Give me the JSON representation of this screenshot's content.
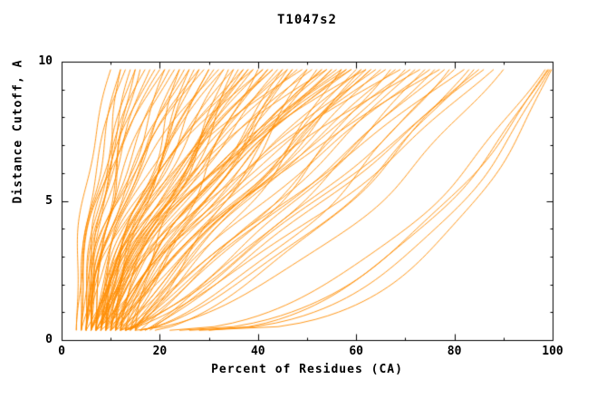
{
  "chart_data": {
    "type": "line",
    "title": "T1047s2",
    "xlabel": "Percent of Residues (CA)",
    "ylabel": "Distance Cutoff, A",
    "xlim": [
      0,
      100
    ],
    "ylim": [
      0,
      10
    ],
    "xticks": [
      0,
      20,
      40,
      60,
      80,
      100
    ],
    "yticks": [
      0,
      5,
      10
    ],
    "xminor": [
      10,
      30,
      50,
      70,
      90
    ],
    "yminor": [
      1,
      2,
      3,
      4,
      6,
      7,
      8,
      9
    ],
    "grid": false,
    "legend": null,
    "line_color": "#ff8c00",
    "frame_color": "#000000",
    "text_color": "#000000",
    "background": "#ffffff",
    "curve_y_range": [
      0.35,
      9.72
    ],
    "curves": [
      [
        3,
        10,
        2.2,
        0.6,
        0.5
      ],
      [
        4,
        12,
        1.8,
        0.8,
        1.2
      ],
      [
        4,
        13,
        2.4,
        0.5,
        2.1
      ],
      [
        5,
        14,
        1.6,
        0.9,
        0.3
      ],
      [
        5,
        15,
        2.0,
        0.7,
        1.8
      ],
      [
        6,
        16,
        1.4,
        1.0,
        2.6
      ],
      [
        4,
        17,
        2.2,
        0.6,
        0.9
      ],
      [
        5,
        18,
        1.7,
        0.8,
        1.5
      ],
      [
        6,
        19,
        2.5,
        0.5,
        2.9
      ],
      [
        3,
        20,
        1.9,
        0.7,
        0.2
      ],
      [
        6,
        12,
        1.3,
        0.9,
        1.1
      ],
      [
        7,
        15,
        1.5,
        0.6,
        2.4
      ],
      [
        4,
        21,
        1.1,
        1.0,
        0.4
      ],
      [
        5,
        22,
        1.6,
        0.8,
        1.6
      ],
      [
        6,
        23,
        2.0,
        0.6,
        2.8
      ],
      [
        7,
        24,
        0.9,
        1.2,
        0.7
      ],
      [
        5,
        25,
        1.4,
        0.9,
        1.9
      ],
      [
        6,
        26,
        1.8,
        0.7,
        3.0
      ],
      [
        8,
        27,
        1.2,
        1.1,
        0.5
      ],
      [
        4,
        28,
        1.7,
        0.8,
        1.3
      ],
      [
        7,
        29,
        2.1,
        0.6,
        2.2
      ],
      [
        5,
        30,
        1.0,
        1.3,
        0.8
      ],
      [
        8,
        31,
        1.5,
        0.9,
        1.7
      ],
      [
        6,
        32,
        1.9,
        0.7,
        2.5
      ],
      [
        9,
        33,
        1.3,
        1.0,
        0.6
      ],
      [
        7,
        34,
        0.8,
        1.2,
        1.4
      ],
      [
        5,
        21,
        2.3,
        0.5,
        2.0
      ],
      [
        8,
        24,
        1.6,
        0.8,
        0.9
      ],
      [
        6,
        28,
        1.1,
        1.1,
        1.8
      ],
      [
        9,
        30,
        1.4,
        0.9,
        2.7
      ],
      [
        7,
        33,
        1.8,
        0.7,
        0.3
      ],
      [
        10,
        26,
        1.2,
        1.0,
        1.0
      ],
      [
        5,
        35,
        1.5,
        0.9,
        0.5
      ],
      [
        7,
        36,
        1.0,
        1.2,
        1.5
      ],
      [
        9,
        37,
        1.8,
        0.7,
        2.5
      ],
      [
        6,
        38,
        1.3,
        1.0,
        0.8
      ],
      [
        8,
        39,
        2.0,
        0.6,
        1.8
      ],
      [
        10,
        40,
        0.9,
        1.3,
        2.8
      ],
      [
        7,
        41,
        1.6,
        0.8,
        0.4
      ],
      [
        9,
        42,
        1.2,
        1.1,
        1.4
      ],
      [
        11,
        43,
        1.9,
        0.6,
        2.4
      ],
      [
        6,
        44,
        1.1,
        1.2,
        0.6
      ],
      [
        8,
        45,
        1.4,
        0.9,
        1.6
      ],
      [
        10,
        46,
        1.7,
        0.7,
        2.6
      ],
      [
        12,
        47,
        1.0,
        1.2,
        0.9
      ],
      [
        7,
        48,
        1.5,
        0.8,
        1.9
      ],
      [
        9,
        49,
        2.1,
        0.6,
        2.9
      ],
      [
        11,
        35,
        0.9,
        1.3,
        0.2
      ],
      [
        6,
        39,
        1.2,
        1.0,
        1.2
      ],
      [
        8,
        43,
        1.6,
        0.8,
        2.2
      ],
      [
        10,
        47,
        1.1,
        1.1,
        0.7
      ],
      [
        12,
        37,
        1.4,
        0.9,
        1.7
      ],
      [
        5,
        41,
        1.8,
        0.7,
        2.7
      ],
      [
        7,
        45,
        0.9,
        1.2,
        0.5
      ],
      [
        9,
        38,
        1.3,
        1.0,
        1.5
      ],
      [
        11,
        42,
        1.6,
        0.8,
        2.5
      ],
      [
        13,
        46,
        1.0,
        1.1,
        1.0
      ],
      [
        6,
        50,
        1.2,
        1.0,
        0.3
      ],
      [
        8,
        51,
        1.6,
        0.8,
        1.3
      ],
      [
        10,
        52,
        0.9,
        1.2,
        2.3
      ],
      [
        12,
        53,
        1.4,
        0.9,
        0.6
      ],
      [
        7,
        54,
        1.8,
        0.7,
        1.6
      ],
      [
        9,
        55,
        1.1,
        1.1,
        2.6
      ],
      [
        11,
        56,
        1.5,
        0.8,
        0.8
      ],
      [
        13,
        57,
        0.8,
        1.3,
        1.8
      ],
      [
        8,
        58,
        1.3,
        1.0,
        2.8
      ],
      [
        10,
        59,
        1.7,
        0.7,
        0.4
      ],
      [
        12,
        60,
        1.0,
        1.2,
        1.4
      ],
      [
        14,
        61,
        1.4,
        0.9,
        2.4
      ],
      [
        9,
        62,
        1.8,
        0.6,
        0.7
      ],
      [
        11,
        63,
        1.1,
        1.1,
        1.7
      ],
      [
        13,
        64,
        1.5,
        0.8,
        2.7
      ],
      [
        15,
        50,
        0.9,
        1.2,
        0.9
      ],
      [
        7,
        53,
        1.2,
        1.0,
        1.9
      ],
      [
        9,
        57,
        1.6,
        0.8,
        2.9
      ],
      [
        11,
        61,
        0.9,
        1.2,
        0.5
      ],
      [
        13,
        55,
        1.3,
        0.9,
        1.5
      ],
      [
        15,
        59,
        1.7,
        0.7,
        2.5
      ],
      [
        8,
        63,
        1.0,
        1.1,
        1.0
      ],
      [
        10,
        54,
        1.4,
        0.9,
        2.0
      ],
      [
        12,
        58,
        1.8,
        0.6,
        0.2
      ],
      [
        14,
        62,
        1.1,
        1.0,
        1.2
      ],
      [
        9,
        65,
        1.0,
        1.1,
        0.6
      ],
      [
        11,
        66,
        1.4,
        0.9,
        1.6
      ],
      [
        13,
        67,
        0.8,
        1.3,
        2.6
      ],
      [
        15,
        68,
        1.2,
        1.0,
        0.8
      ],
      [
        10,
        69,
        1.6,
        0.7,
        1.8
      ],
      [
        12,
        70,
        0.9,
        1.2,
        2.8
      ],
      [
        14,
        71,
        1.3,
        0.9,
        0.4
      ],
      [
        16,
        72,
        1.0,
        1.1,
        1.4
      ],
      [
        11,
        73,
        1.5,
        0.8,
        2.4
      ],
      [
        13,
        74,
        0.8,
        1.2,
        0.7
      ],
      [
        15,
        75,
        1.2,
        1.0,
        1.7
      ],
      [
        17,
        76,
        0.9,
        1.1,
        2.7
      ],
      [
        12,
        77,
        1.4,
        0.8,
        0.9
      ],
      [
        14,
        78,
        1.0,
        1.1,
        1.9
      ],
      [
        16,
        79,
        0.7,
        1.3,
        2.9
      ],
      [
        12,
        80,
        0.8,
        1.2,
        0.5
      ],
      [
        14,
        82,
        1.1,
        1.0,
        1.5
      ],
      [
        16,
        84,
        0.7,
        1.3,
        2.5
      ],
      [
        18,
        86,
        1.0,
        1.0,
        0.8
      ],
      [
        13,
        88,
        0.8,
        1.2,
        1.8
      ],
      [
        15,
        90,
        0.6,
        1.3,
        2.8
      ],
      [
        17,
        85,
        0.9,
        1.1,
        1.0
      ],
      [
        19,
        83,
        0.7,
        1.2,
        2.0
      ],
      [
        24,
        99,
        0.45,
        0.8,
        0.6
      ],
      [
        26,
        99.5,
        0.4,
        0.7,
        1.6
      ],
      [
        22,
        98.5,
        0.5,
        0.9,
        2.6
      ],
      [
        28,
        99.8,
        0.35,
        0.6,
        0.9
      ],
      [
        30,
        99.2,
        0.5,
        0.8,
        1.9
      ]
    ]
  }
}
